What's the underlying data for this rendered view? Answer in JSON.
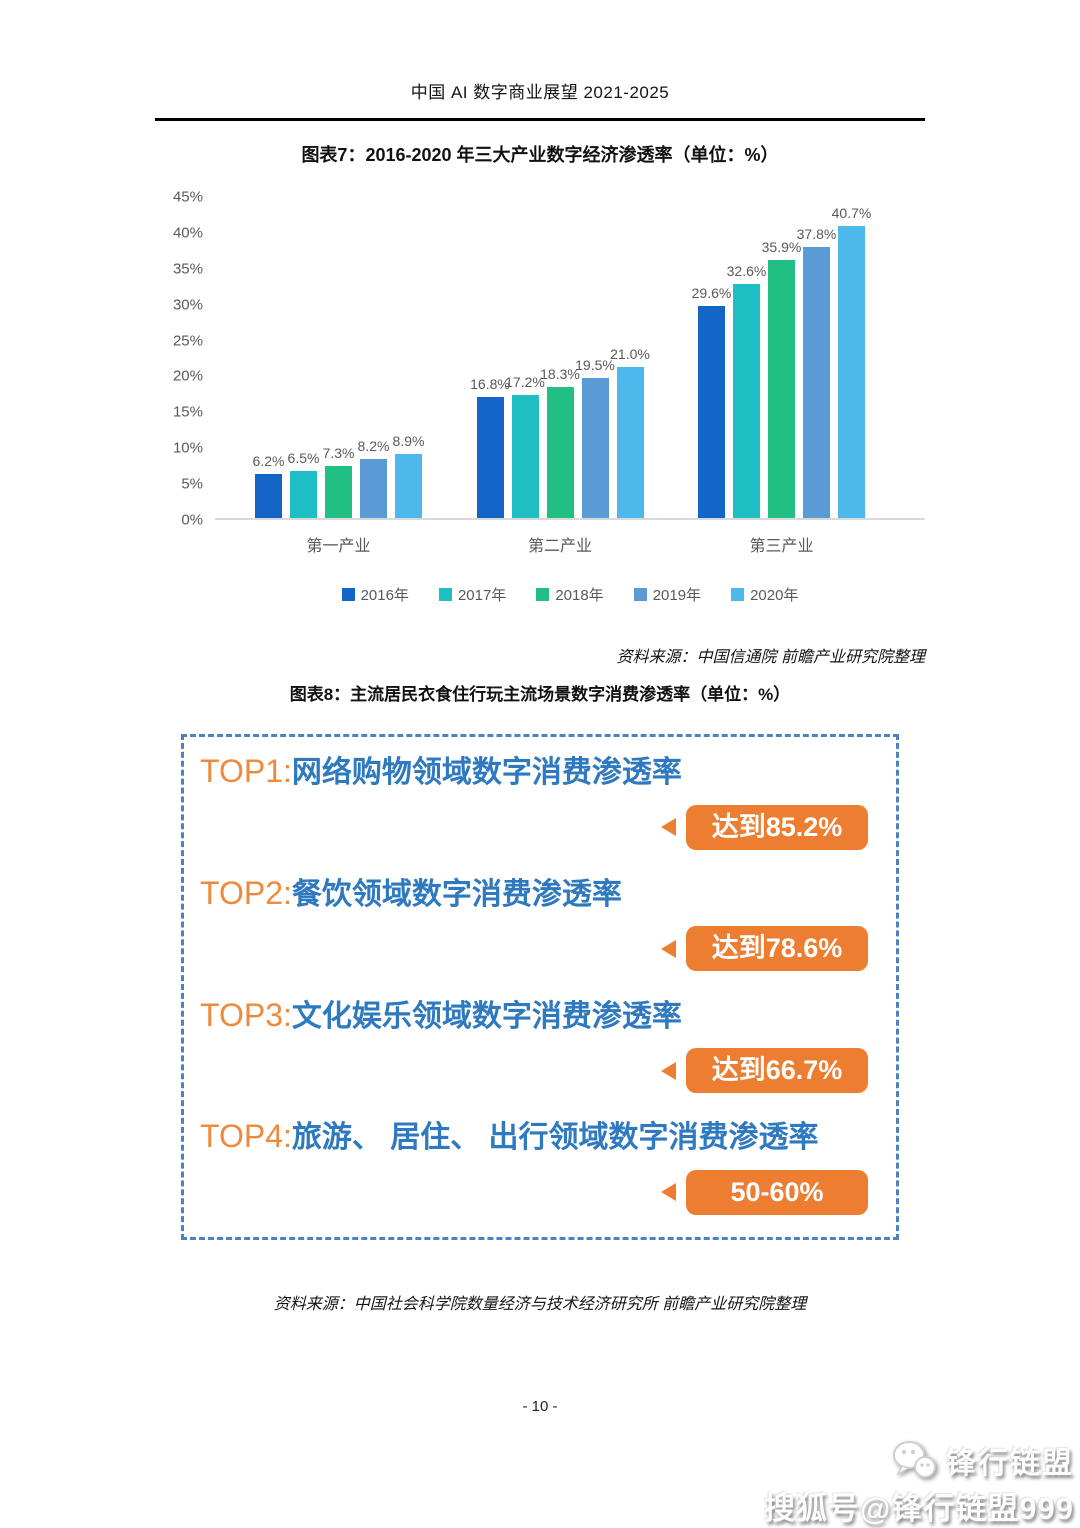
{
  "page": {
    "header_title": "中国 AI 数字商业展望 2021-2025",
    "page_number": "- 10 -",
    "background_color": "#ffffff"
  },
  "chart7": {
    "title": "图表7：2016-2020 年三大产业数字经济渗透率（单位：%）",
    "source": "资料来源：中国信通院 前瞻产业研究院整理"
  },
  "chart_data": {
    "type": "bar",
    "title": "图表7：2016-2020 年三大产业数字经济渗透率（单位：%）",
    "categories": [
      "第一产业",
      "第二产业",
      "第三产业"
    ],
    "series": [
      {
        "name": "2016年",
        "color": "#1565C8",
        "values": [
          6.2,
          16.8,
          29.6
        ]
      },
      {
        "name": "2017年",
        "color": "#1FBEC3",
        "values": [
          6.5,
          17.2,
          32.6
        ]
      },
      {
        "name": "2018年",
        "color": "#21BF84",
        "values": [
          7.3,
          18.3,
          35.9
        ]
      },
      {
        "name": "2019年",
        "color": "#5B9BD5",
        "values": [
          8.2,
          19.5,
          37.8
        ]
      },
      {
        "name": "2020年",
        "color": "#4DB8EC",
        "values": [
          8.9,
          21.0,
          40.7
        ]
      }
    ],
    "ylim": [
      0,
      45
    ],
    "ytick_labels": [
      "45%",
      "40%",
      "35%",
      "30%",
      "25%",
      "20%",
      "15%",
      "10%",
      "5%",
      "0%"
    ],
    "value_suffix": "%",
    "grid": false,
    "legend_position": "bottom",
    "axis_text_color": "#595959",
    "baseline_color": "#d9d9d9"
  },
  "chart8": {
    "title": "图表8：主流居民衣食住行玩主流场景数字消费渗透率（单位：%）",
    "source": "资料来源：中国社会科学院数量经济与技术经济研究所 前瞻产业研究院整理",
    "accent_orange": "#ED7D31",
    "text_blue": "#2E79BF",
    "border_blue": "#4F81BD",
    "items": [
      {
        "rank": "TOP1:",
        "label": "网络购物领域数字消费渗透率",
        "badge": "达到85.2%"
      },
      {
        "rank": "TOP2:",
        "label": "餐饮领域数字消费渗透率",
        "badge": "达到78.6%"
      },
      {
        "rank": "TOP3:",
        "label": "文化娱乐领域数字消费渗透率",
        "badge": "达到66.7%"
      },
      {
        "rank": "TOP4:",
        "label": "旅游、 居住、 出行领域数字消费渗透率",
        "badge": "50-60%"
      }
    ]
  },
  "watermark": {
    "icon": "chat-bubbles-icon",
    "logo_text": "锋行链盟",
    "account_text": "搜狐号@锋行链盟999"
  }
}
